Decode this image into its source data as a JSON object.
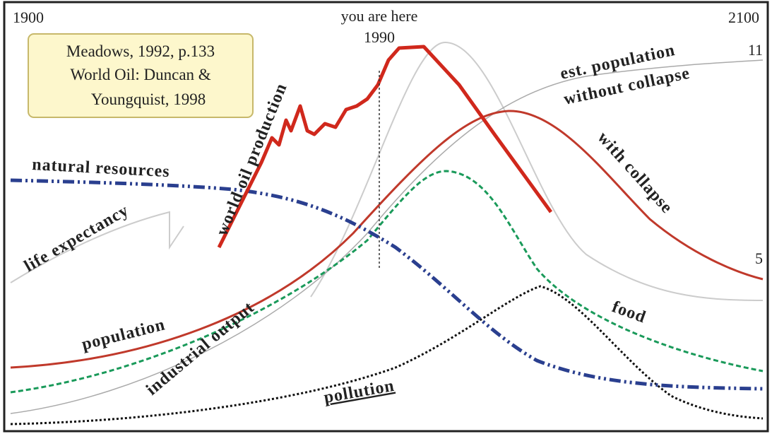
{
  "header": {
    "start_year": "1900",
    "end_year": "2100",
    "marker": "you are here",
    "marker_year": "1990",
    "right_top": "11",
    "right_mid": "5"
  },
  "source_box": {
    "lines": [
      "Meadows, 1992, p.133",
      "World Oil: Duncan &",
      "Youngquist, 1998"
    ]
  },
  "curve_labels": {
    "oil": "world oil production",
    "natural_resources": "natural resources",
    "life_expectancy": "life expectancy",
    "population": "population",
    "industrial_output": "industrial output",
    "pollution": "pollution",
    "food": "food",
    "est_population_1": "est. population",
    "est_population_2": "without collapse",
    "collapse": "with collapse"
  }
}
